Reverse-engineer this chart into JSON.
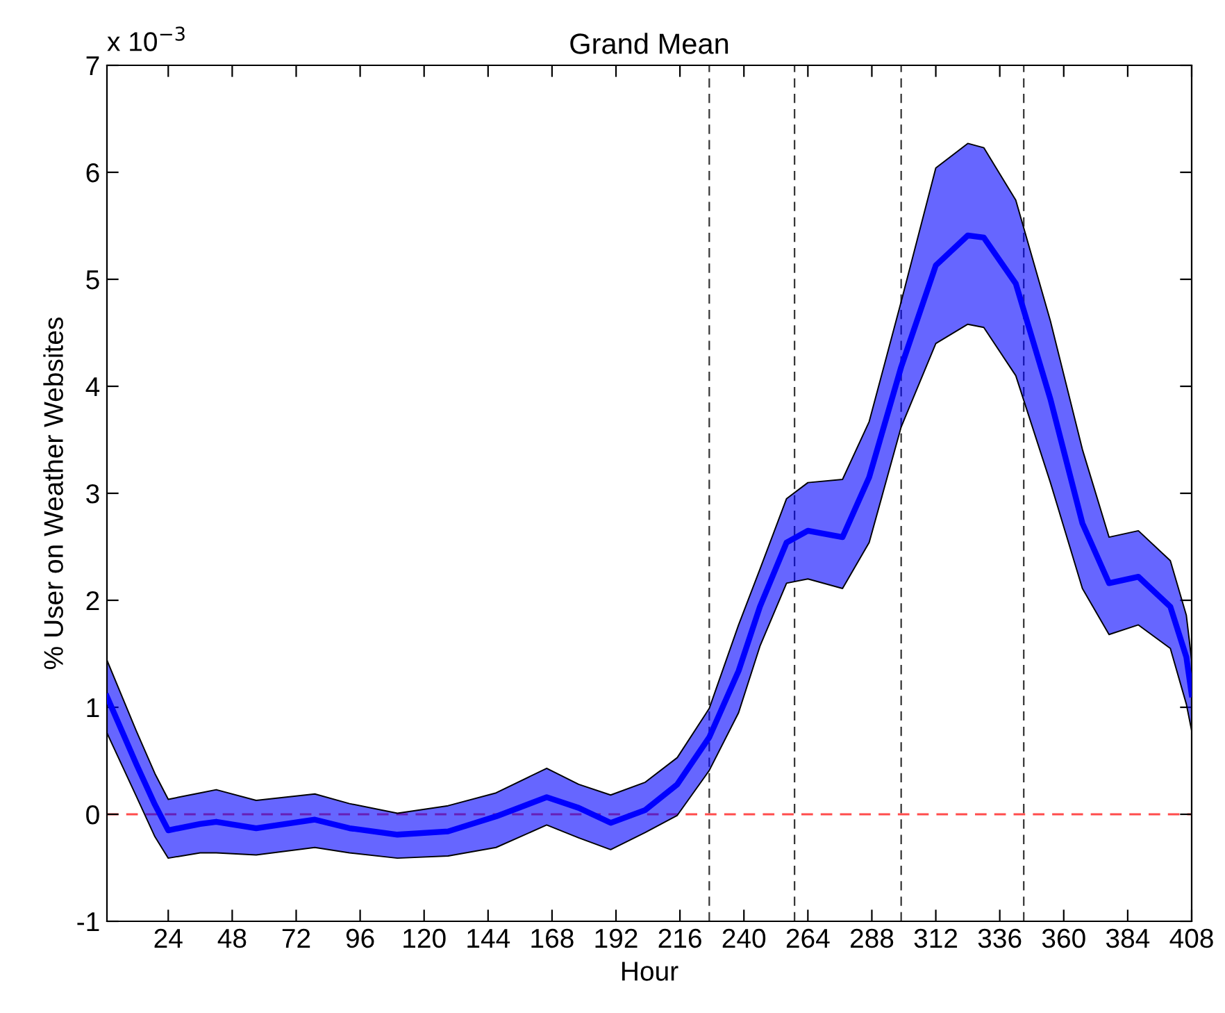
{
  "chart_data": {
    "type": "line",
    "title": "Grand Mean",
    "xlabel": "Hour",
    "ylabel": "% User on Weather Websites",
    "annotations": [
      "x 10$^{−3}$"
    ],
    "x": [
      1,
      12,
      19,
      24,
      36,
      42,
      57,
      79,
      92,
      110,
      129,
      147,
      166,
      178,
      190,
      203,
      215,
      227,
      238,
      246,
      256,
      264,
      277,
      287,
      299,
      312,
      324,
      330,
      342,
      355,
      367,
      377,
      388,
      400,
      406,
      408
    ],
    "series": [
      {
        "color": "#0000ff",
        "values": [
          1.1,
          0.47,
          0.09,
          -0.15,
          -0.09,
          -0.07,
          -0.13,
          -0.05,
          -0.13,
          -0.19,
          -0.16,
          -0.02,
          0.16,
          0.06,
          -0.08,
          0.04,
          0.28,
          0.72,
          1.34,
          1.94,
          2.54,
          2.65,
          2.59,
          3.15,
          4.18,
          5.13,
          5.41,
          5.39,
          4.96,
          3.88,
          2.72,
          2.16,
          2.22,
          1.94,
          1.47,
          1.12
        ],
        "lower": [
          0.76,
          0.17,
          -0.21,
          -0.41,
          -0.36,
          -0.36,
          -0.38,
          -0.31,
          -0.36,
          -0.41,
          -0.39,
          -0.31,
          -0.1,
          -0.22,
          -0.33,
          -0.17,
          -0.01,
          0.41,
          0.95,
          1.57,
          2.16,
          2.2,
          2.11,
          2.54,
          3.62,
          4.4,
          4.58,
          4.55,
          4.1,
          3.1,
          2.11,
          1.68,
          1.77,
          1.55,
          1.03,
          0.78
        ],
        "upper": [
          1.44,
          0.78,
          0.38,
          0.14,
          0.2,
          0.23,
          0.13,
          0.19,
          0.1,
          0.01,
          0.08,
          0.2,
          0.43,
          0.28,
          0.18,
          0.3,
          0.53,
          0.99,
          1.77,
          2.29,
          2.95,
          3.1,
          3.13,
          3.67,
          4.79,
          6.04,
          6.27,
          6.23,
          5.74,
          4.61,
          3.41,
          2.59,
          2.65,
          2.37,
          1.86,
          1.44
        ]
      }
    ],
    "xlim": [
      1,
      408
    ],
    "xticks": [
      24,
      48,
      72,
      96,
      120,
      144,
      168,
      192,
      216,
      240,
      264,
      288,
      312,
      336,
      360,
      384,
      408
    ],
    "ylim": [
      -1,
      7
    ],
    "yticks": [
      -1,
      0,
      1,
      2,
      3,
      4,
      5,
      6,
      7
    ],
    "ref_lines": [
      {
        "axis": "x",
        "value": 227,
        "color": "#000000",
        "line_style": "dashed"
      },
      {
        "axis": "x",
        "value": 259,
        "color": "#000000",
        "line_style": "dashed"
      },
      {
        "axis": "x",
        "value": 299,
        "color": "#000000",
        "line_style": "dashed"
      },
      {
        "axis": "x",
        "value": 345,
        "color": "#000000",
        "line_style": "dashed"
      },
      {
        "axis": "y",
        "value": 0,
        "color": "#ff0000",
        "line_style": "dashed"
      }
    ],
    "grid": false,
    "legend": false,
    "marker": "none",
    "line_style": "solid"
  }
}
